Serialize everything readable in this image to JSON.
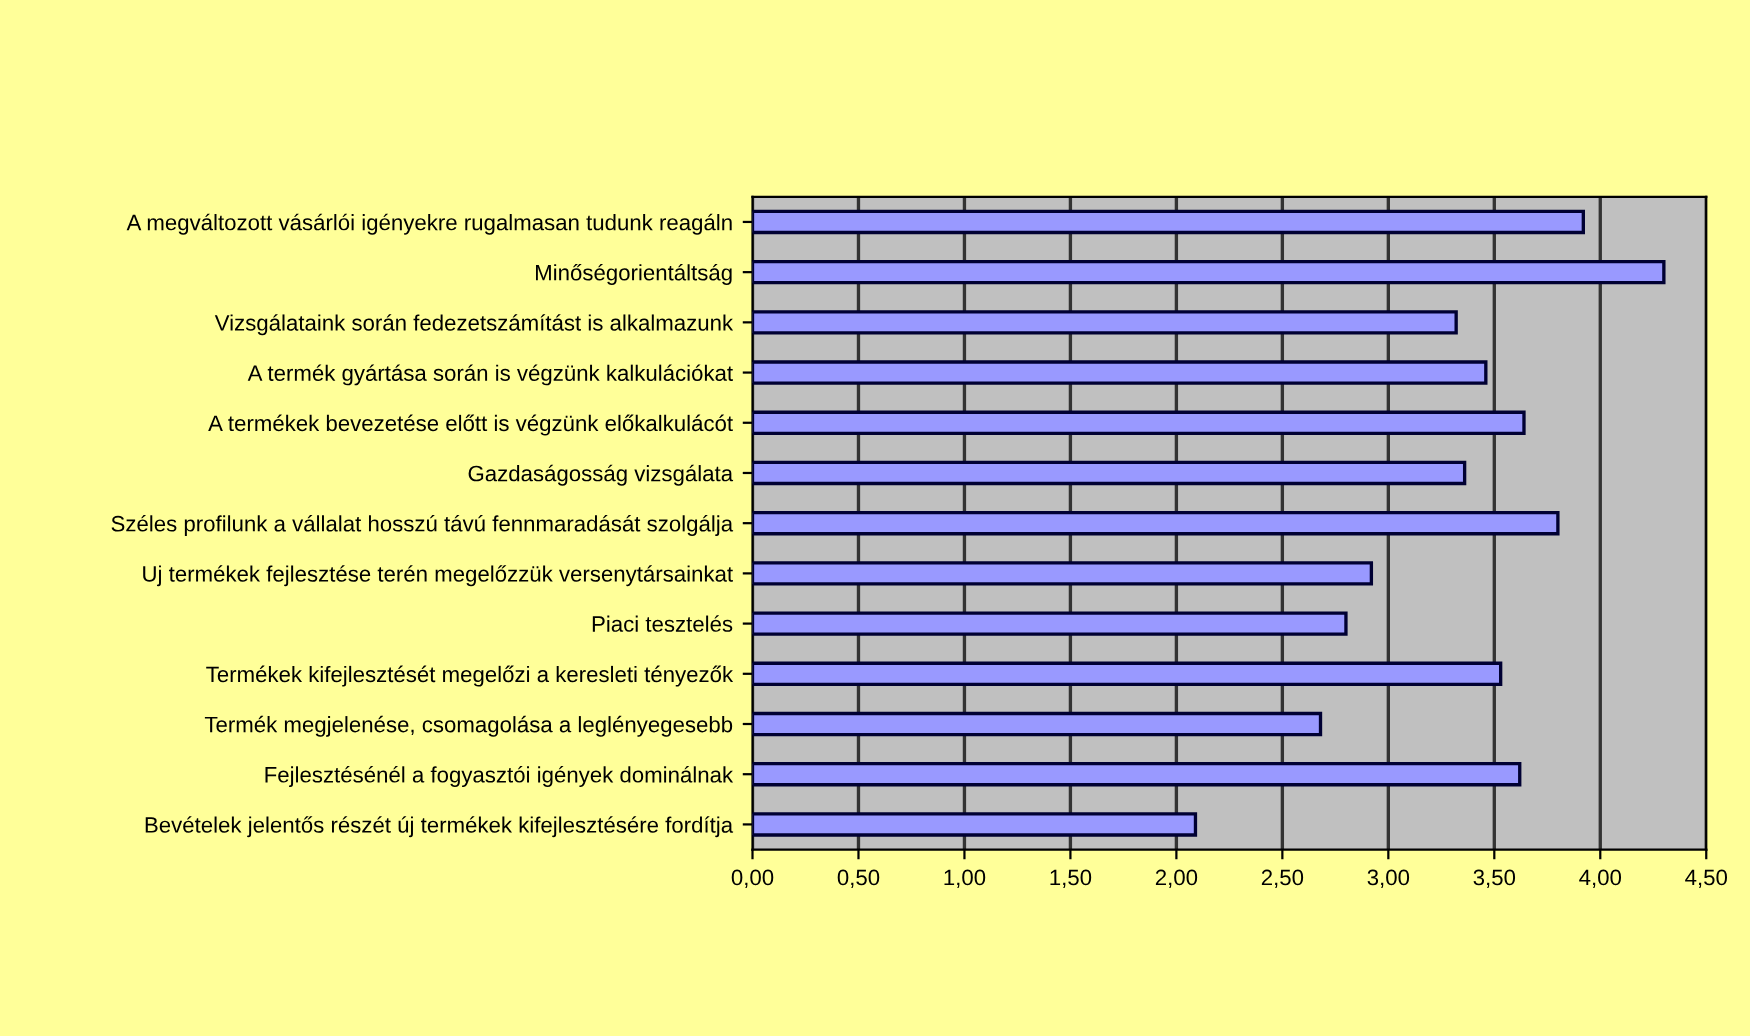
{
  "chart_data": {
    "type": "bar",
    "orientation": "horizontal",
    "categories": [
      "A megváltozott vásárlói igényekre rugalmasan tudunk reagáln",
      "Minőségorientáltság",
      "Vizsgálataink során fedezetszámítást is alkalmazunk",
      "A termék gyártása során is végzünk kalkulációkat",
      "A termékek bevezetése előtt is végzünk előkalkulácót",
      "Gazdaságosság vizsgálata",
      "Széles profilunk a vállalat hosszú távú fennmaradását szolgálja",
      "Uj termékek fejlesztése terén megelőzzük versenytársainkat",
      "Piaci tesztelés",
      "Termékek kifejlesztését megelőzi a keresleti tényezők",
      "Termék megjelenése, csomagolása a leglényegesebb",
      "Fejlesztésénél a fogyasztói igények dominálnak",
      "Bevételek jelentős részét új termékek kifejlesztésére fordítja"
    ],
    "values": [
      3.92,
      4.3,
      3.32,
      3.46,
      3.64,
      3.36,
      3.8,
      2.92,
      2.8,
      3.53,
      2.68,
      3.62,
      2.09
    ],
    "color": "#9999ff",
    "xlim": [
      0,
      4.5
    ],
    "xticks": [
      {
        "value": 0,
        "label": "0,00"
      },
      {
        "value": 0.5,
        "label": "0,50"
      },
      {
        "value": 1,
        "label": "1,00"
      },
      {
        "value": 1.5,
        "label": "1,50"
      },
      {
        "value": 2,
        "label": "2,00"
      },
      {
        "value": 2.5,
        "label": "2,50"
      },
      {
        "value": 3,
        "label": "3,00"
      },
      {
        "value": 3.5,
        "label": "3,50"
      },
      {
        "value": 4,
        "label": "4,00"
      },
      {
        "value": 4.5,
        "label": "4,50"
      }
    ],
    "grid": "x",
    "legend": false
  }
}
